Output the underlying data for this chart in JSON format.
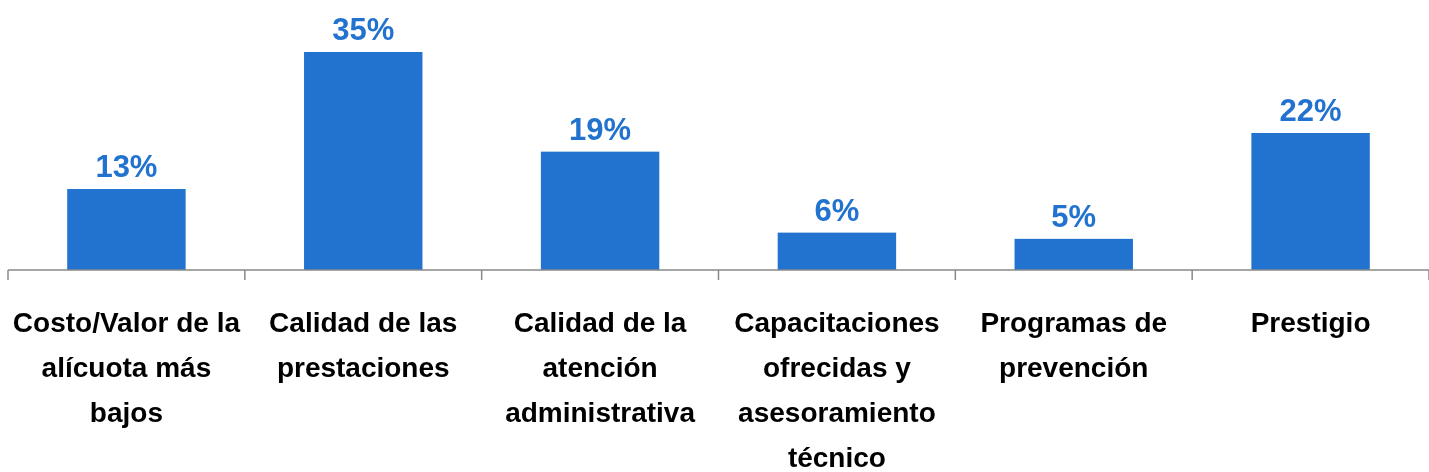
{
  "chart_data": {
    "type": "bar",
    "categories": [
      "Costo/Valor de la alícuota más bajos",
      "Calidad de las prestaciones",
      "Calidad de la atención administrativa",
      "Capacitaciones ofrecidas y asesoramiento técnico",
      "Programas de prevención",
      "Prestigio"
    ],
    "values": [
      13,
      35,
      19,
      6,
      5,
      22
    ],
    "color": "#2272cf",
    "value_labels": [
      "13%",
      "35%",
      "19%",
      "6%",
      "5%",
      "22%"
    ]
  }
}
